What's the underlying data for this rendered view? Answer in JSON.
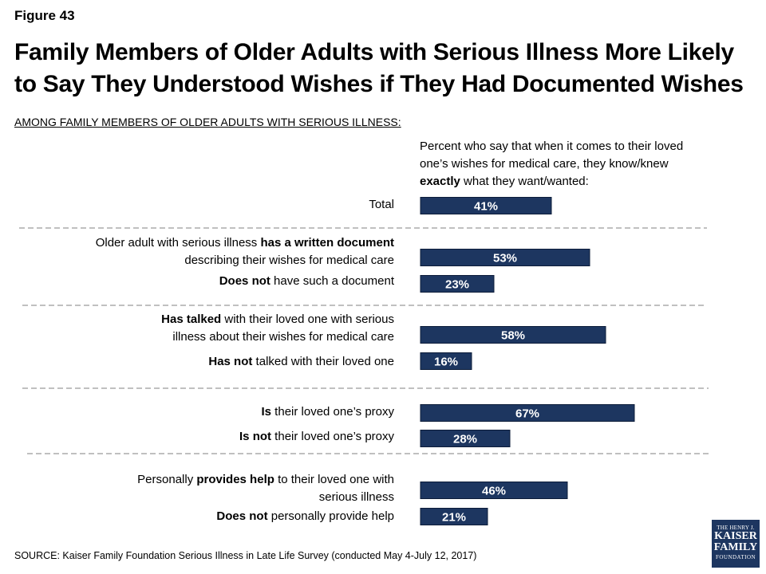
{
  "figure_label": "Figure 43",
  "title": "Family Members of Older Adults with Serious Illness More Likely to Say They Understood Wishes if They Had Documented Wishes",
  "subtitle": "AMONG FAMILY MEMBERS OF OLDER ADULTS WITH SERIOUS ILLNESS:",
  "question_text": {
    "before": "Percent who say that when it comes to their loved one’s wishes for medical care, they know/knew ",
    "bold": "exactly",
    "after": " what they want/wanted:"
  },
  "source": "SOURCE: Kaiser Family Foundation Serious Illness in Late Life Survey (conducted May 4-July 12, 2017)",
  "logo": {
    "line1": "THE HENRY J.",
    "line2": "KAISER",
    "line3": "FAMILY",
    "line4": "FOUNDATION"
  },
  "colors": {
    "bar": "#1d3660",
    "bar_text": "#ffffff",
    "divider": "#9a9a9a"
  },
  "chart_data": {
    "type": "bar",
    "orientation": "horizontal",
    "unit": "%",
    "xlim": [
      0,
      100
    ],
    "grid": false,
    "categories": [
      "Total",
      "Older adult with serious illness has a written document describing their wishes for medical care",
      "Does not have such a document",
      "Has talked with their loved one with serious illness about their wishes for medical care",
      "Has not talked with their loved one",
      "Is their loved one’s proxy",
      "Is not their loved one’s proxy",
      "Personally provides help to their loved one with serious illness",
      "Does not personally provide help"
    ],
    "values": [
      41,
      53,
      23,
      58,
      16,
      67,
      28,
      46,
      21
    ],
    "data_labels": [
      "41%",
      "53%",
      "23%",
      "58%",
      "16%",
      "67%",
      "28%",
      "46%",
      "21%"
    ],
    "rows": [
      {
        "lines": [
          [
            {
              "t": "Total",
              "b": false
            }
          ]
        ]
      },
      {
        "lines": [
          [
            {
              "t": "Older adult with serious illness ",
              "b": false
            },
            {
              "t": "has a written document",
              "b": true
            }
          ],
          [
            {
              "t": "describing their wishes for medical care",
              "b": false
            }
          ]
        ]
      },
      {
        "lines": [
          [
            {
              "t": "Does not",
              "b": true
            },
            {
              "t": " have such a document",
              "b": false
            }
          ]
        ]
      },
      {
        "lines": [
          [
            {
              "t": "Has talked",
              "b": true
            },
            {
              "t": " with their loved one with serious",
              "b": false
            }
          ],
          [
            {
              "t": "illness about their wishes for medical care",
              "b": false
            }
          ]
        ]
      },
      {
        "lines": [
          [
            {
              "t": "Has not",
              "b": true
            },
            {
              "t": " talked with their loved one",
              "b": false
            }
          ]
        ]
      },
      {
        "lines": [
          [
            {
              "t": "Is",
              "b": true
            },
            {
              "t": " their loved one’s proxy",
              "b": false
            }
          ]
        ]
      },
      {
        "lines": [
          [
            {
              "t": "Is not",
              "b": true
            },
            {
              "t": " their loved one’s proxy",
              "b": false
            }
          ]
        ]
      },
      {
        "lines": [
          [
            {
              "t": "Personally ",
              "b": false
            },
            {
              "t": "provides help",
              "b": true
            },
            {
              "t": " to their loved one with",
              "b": false
            }
          ],
          [
            {
              "t": "serious illness",
              "b": false
            }
          ]
        ]
      },
      {
        "lines": [
          [
            {
              "t": "Does not",
              "b": true
            },
            {
              "t": " personally provide help",
              "b": false
            }
          ]
        ]
      }
    ]
  }
}
